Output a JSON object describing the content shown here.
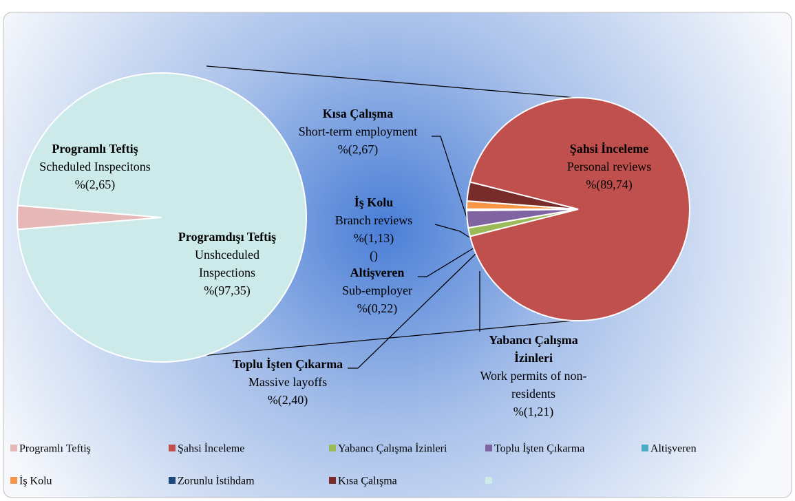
{
  "chart_data": {
    "type": "pie-of-pie",
    "legend": "bottom",
    "primary": {
      "slices": [
        {
          "name": "Programlı Teftiş",
          "color": "#e6b8b7",
          "value": 2.65,
          "value_label": "%(2,65)",
          "title": [
            "Programlı Teftiş"
          ],
          "subtitle": [
            "Scheduled Inspecitons"
          ]
        },
        {
          "name": null,
          "color": "#cdeaea",
          "value": 97.35,
          "value_label": "%(97,35)",
          "title": [
            "Programdışı Teftiş"
          ],
          "subtitle": [
            "Unshceduled",
            "Inspections"
          ]
        }
      ]
    },
    "secondary": {
      "slices": [
        {
          "name": "Şahsi İnceleme",
          "color": "#c0504d",
          "value": 89.74,
          "value_label": "%(89,74)",
          "title": [
            "Şahsi İnceleme"
          ],
          "subtitle": [
            "Personal reviews"
          ]
        },
        {
          "name": "Yabancı Çalışma İzinleri",
          "color": "#9bbb59",
          "value": 1.21,
          "value_label": "%(1,21)",
          "title": [
            "Yabancı Çalışma",
            "İzinleri"
          ],
          "subtitle": [
            "Work permits of non-",
            "residents"
          ]
        },
        {
          "name": "Toplu İşten Çıkarma",
          "color": "#8064a2",
          "value": 2.4,
          "value_label": "%(2,40)",
          "title": [
            "Toplu İşten Çıkarma"
          ],
          "subtitle": [
            "Massive layoffs"
          ]
        },
        {
          "name": "Altişveren",
          "color": "#4bacc6",
          "value": 0.22,
          "value_label": "%(0,22)",
          "title": [
            "Altişveren"
          ],
          "subtitle": [
            "Sub-employer"
          ]
        },
        {
          "name": "İş Kolu",
          "color": "#f79646",
          "value": 1.13,
          "value_label": "%(1,13)",
          "title": [
            "İş Kolu"
          ],
          "subtitle": [
            "Branch reviews"
          ]
        },
        {
          "name": "Zorunlu İstihdam",
          "color": "#1f497d",
          "value": 0,
          "value_label": "()",
          "title": [],
          "subtitle": []
        },
        {
          "name": "Kısa Çalışma",
          "color": "#772c2a",
          "value": 2.67,
          "value_label": "%(2,67)",
          "title": [
            "Kısa Çalışma"
          ],
          "subtitle": [
            "Short-term employment"
          ]
        }
      ]
    }
  }
}
